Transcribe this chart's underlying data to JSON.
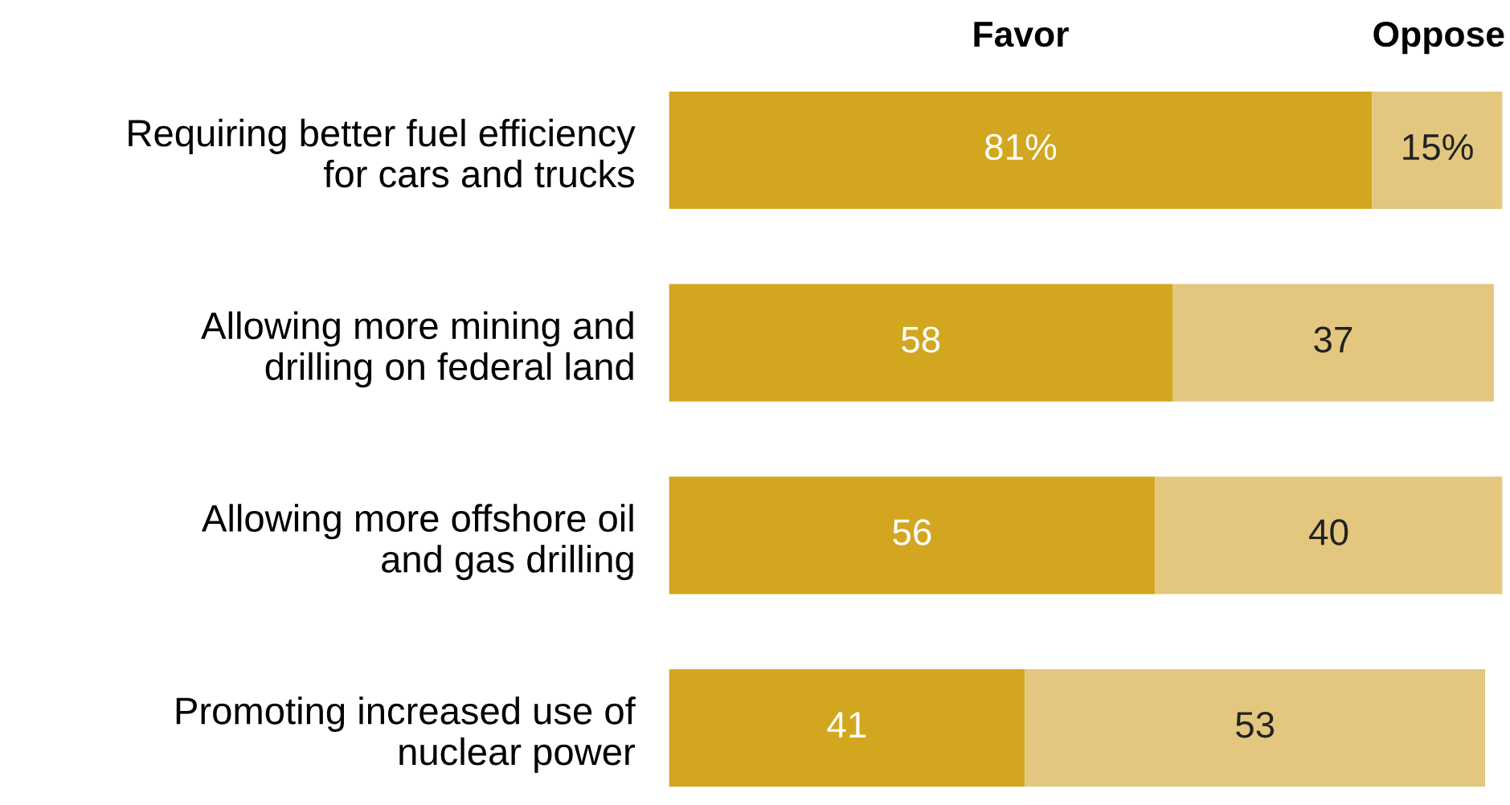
{
  "chart_data": {
    "type": "bar",
    "orientation": "horizontal",
    "stacked": true,
    "categories": [
      "Requiring better fuel efficiency\nfor cars and trucks",
      "Allowing more mining and\ndrilling on federal land",
      "Allowing more offshore oil\nand gas drilling",
      "Promoting increased use of\nnuclear power"
    ],
    "series": [
      {
        "name": "Favor",
        "color": "#d2a71f",
        "values": [
          81,
          58,
          56,
          41
        ],
        "value_labels": [
          "81%",
          "58",
          "56",
          "41"
        ]
      },
      {
        "name": "Oppose",
        "color": "#e3c77e",
        "values": [
          15,
          37,
          40,
          53
        ],
        "value_labels": [
          "15%",
          "37",
          "40",
          "53"
        ]
      }
    ],
    "xlim": [
      0,
      96
    ],
    "tick_labels": "y",
    "grid": false,
    "legend": false
  }
}
